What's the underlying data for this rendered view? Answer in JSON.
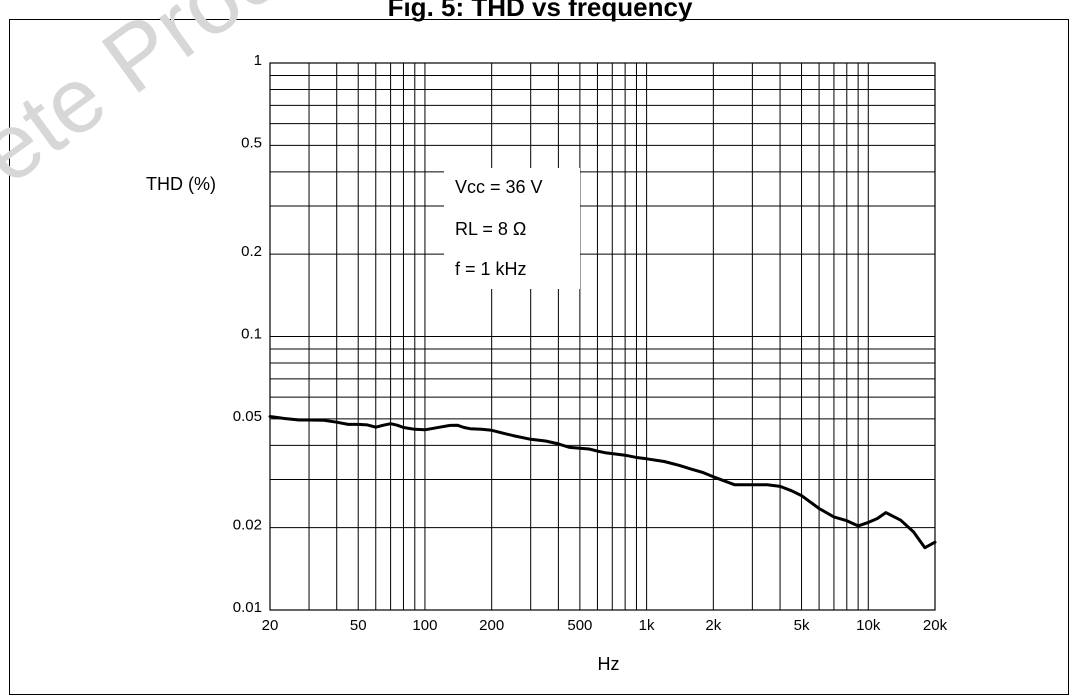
{
  "page": {
    "title": "Fig. 5: THD vs frequency",
    "watermark": "ete Product(s) - O"
  },
  "chart_data": {
    "type": "line",
    "title": "",
    "xlabel": "Hz",
    "ylabel": "THD (%)",
    "xscale": "log",
    "yscale": "log",
    "xlim": [
      20,
      20000
    ],
    "ylim": [
      0.01,
      1
    ],
    "grid": true,
    "x_ticks": [
      {
        "v": 20,
        "label": "20"
      },
      {
        "v": 50,
        "label": "50"
      },
      {
        "v": 100,
        "label": "100"
      },
      {
        "v": 200,
        "label": "200"
      },
      {
        "v": 500,
        "label": "500"
      },
      {
        "v": 1000,
        "label": "1k"
      },
      {
        "v": 2000,
        "label": "2k"
      },
      {
        "v": 5000,
        "label": "5k"
      },
      {
        "v": 10000,
        "label": "10k"
      },
      {
        "v": 20000,
        "label": "20k"
      }
    ],
    "y_ticks": [
      {
        "v": 0.01,
        "label": "0.01"
      },
      {
        "v": 0.02,
        "label": "0.02"
      },
      {
        "v": 0.05,
        "label": "0.05"
      },
      {
        "v": 0.1,
        "label": "0.1"
      },
      {
        "v": 0.2,
        "label": "0.2"
      },
      {
        "v": 0.5,
        "label": "0.5"
      },
      {
        "v": 1,
        "label": "1"
      }
    ],
    "annotations": [
      "Vcc = 36 V",
      "RL = 8 Ω",
      "f = 1 kHz"
    ],
    "series": [
      {
        "color": "#000000",
        "x": [
          20,
          23,
          27,
          30,
          35,
          40,
          45,
          50,
          55,
          60,
          65,
          70,
          75,
          80,
          90,
          100,
          110,
          120,
          130,
          140,
          150,
          160,
          180,
          200,
          230,
          250,
          300,
          350,
          400,
          450,
          500,
          550,
          600,
          650,
          700,
          800,
          900,
          1000,
          1200,
          1400,
          1600,
          1800,
          2000,
          2500,
          3000,
          3500,
          4000,
          4500,
          5000,
          6000,
          7000,
          8000,
          9000,
          10000,
          11000,
          12000,
          14000,
          16000,
          18000,
          20000
        ],
        "y": [
          0.051,
          0.0502,
          0.0495,
          0.0495,
          0.0494,
          0.0486,
          0.0477,
          0.0477,
          0.0475,
          0.0466,
          0.0474,
          0.048,
          0.0474,
          0.0465,
          0.0458,
          0.0456,
          0.0462,
          0.0468,
          0.0473,
          0.0474,
          0.0465,
          0.046,
          0.0458,
          0.0454,
          0.0441,
          0.0434,
          0.0421,
          0.0415,
          0.0405,
          0.0393,
          0.039,
          0.0388,
          0.0381,
          0.0376,
          0.0373,
          0.0368,
          0.0361,
          0.0357,
          0.0349,
          0.0338,
          0.0327,
          0.0318,
          0.0307,
          0.0287,
          0.0287,
          0.0287,
          0.0283,
          0.0273,
          0.0262,
          0.0235,
          0.0219,
          0.0212,
          0.0203,
          0.0209,
          0.0216,
          0.0227,
          0.0213,
          0.0193,
          0.0169,
          0.0177
        ]
      }
    ]
  }
}
